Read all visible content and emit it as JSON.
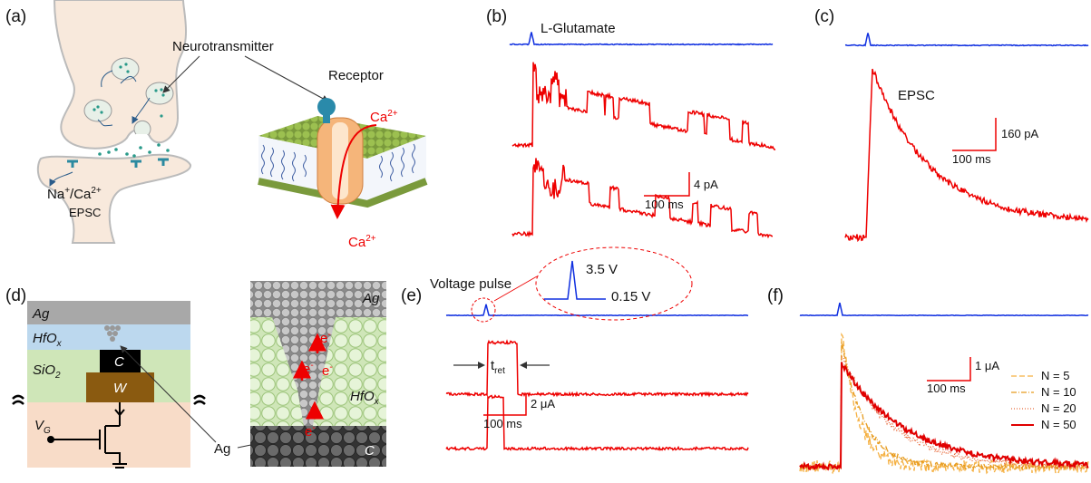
{
  "a": {
    "label": "(a)",
    "neurotransmitter": "Neurotransmitter",
    "receptor": "Receptor",
    "ca_in": [
      "Ca",
      "2+"
    ],
    "ca_out": [
      "Ca",
      "2+"
    ],
    "na_ca": [
      "Na",
      "+",
      "/Ca",
      "2+"
    ],
    "epsc": "EPSC"
  },
  "b": {
    "label": "(b)",
    "stimulus": "L-Glutamate",
    "scale_y": "4 pA",
    "scale_x": "100 ms"
  },
  "c": {
    "label": "(c)",
    "response": "EPSC",
    "scale_y": "160 pA",
    "scale_x": "100 ms"
  },
  "d": {
    "label": "(d)",
    "ag": "Ag",
    "hfox": [
      "HfO",
      "x"
    ],
    "sio2": [
      "SiO",
      "2"
    ],
    "c": "C",
    "w": "W",
    "vg": [
      "V",
      "G"
    ],
    "pointer": "Ag",
    "sim_ag": "Ag",
    "sim_hfox": [
      "HfO",
      "x"
    ],
    "sim_c": "C",
    "electrons": [
      [
        "e",
        "-"
      ],
      [
        "e",
        "-"
      ],
      [
        "e",
        "-"
      ],
      [
        "e",
        "-"
      ]
    ]
  },
  "e": {
    "label": "(e)",
    "stimulus": "Voltage pulse",
    "peak": "3.5 V",
    "base": "0.15 V",
    "t_ret": [
      "t",
      "ret"
    ],
    "scale_y": "2 μA",
    "scale_x": "100 ms"
  },
  "f": {
    "label": "(f)",
    "scale_y": "1 μA",
    "scale_x": "100 ms",
    "legend": [
      "N = 5",
      "N = 10",
      "N = 20",
      "N = 50"
    ]
  }
}
